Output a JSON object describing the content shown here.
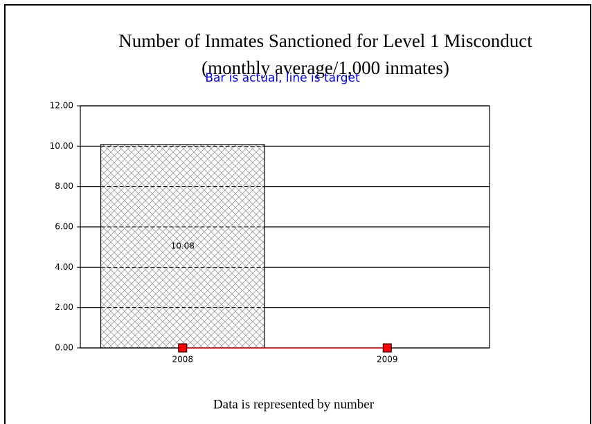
{
  "chart_data": {
    "type": "bar",
    "title": "Number of Inmates Sanctioned for Level 1 Misconduct",
    "subtitle": "(monthly average/1,000 inmates)",
    "annotation": "Bar is actual, line is target",
    "footer": "Data is represented by number",
    "categories": [
      "2008",
      "2009"
    ],
    "series": [
      {
        "type": "bar",
        "color": "#c0c0c0",
        "values": [
          10.08,
          null
        ],
        "value_labels": [
          "10.08",
          null
        ]
      },
      {
        "type": "line",
        "color": "#ff0000",
        "values": [
          0,
          0
        ]
      }
    ],
    "ylim": [
      0,
      12
    ],
    "yticks": [
      {
        "value": 0,
        "label": "0.00"
      },
      {
        "value": 2,
        "label": "2.00"
      },
      {
        "value": 4,
        "label": "4.00"
      },
      {
        "value": 6,
        "label": "6.00"
      },
      {
        "value": 8,
        "label": "8.00"
      },
      {
        "value": 10,
        "label": "10.00"
      },
      {
        "value": 12,
        "label": "12.00"
      }
    ],
    "grid": true
  }
}
